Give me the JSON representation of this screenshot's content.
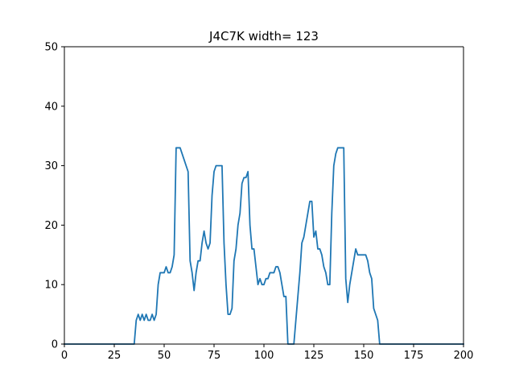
{
  "chart_data": {
    "type": "line",
    "title": "J4C7K width= 123",
    "xlabel": "",
    "ylabel": "",
    "xlim": [
      0,
      200
    ],
    "ylim": [
      0,
      50
    ],
    "xticks": [
      0,
      25,
      50,
      75,
      100,
      125,
      150,
      175,
      200
    ],
    "yticks": [
      0,
      10,
      20,
      30,
      40,
      50
    ],
    "grid": false,
    "series": [
      {
        "color": "#1f77b4",
        "x": [
          0,
          35,
          36,
          37,
          38,
          39,
          40,
          41,
          42,
          43,
          44,
          45,
          46,
          47,
          48,
          49,
          50,
          51,
          52,
          53,
          54,
          55,
          56,
          57,
          58,
          59,
          60,
          61,
          62,
          63,
          64,
          65,
          66,
          67,
          68,
          69,
          70,
          71,
          72,
          73,
          74,
          75,
          76,
          77,
          78,
          79,
          80,
          81,
          82,
          83,
          84,
          85,
          86,
          87,
          88,
          89,
          90,
          91,
          92,
          93,
          94,
          95,
          96,
          97,
          98,
          99,
          100,
          101,
          102,
          103,
          104,
          105,
          106,
          107,
          108,
          109,
          110,
          111,
          112,
          113,
          114,
          115,
          116,
          117,
          118,
          119,
          120,
          121,
          122,
          123,
          124,
          125,
          126,
          127,
          128,
          129,
          130,
          131,
          132,
          133,
          134,
          135,
          136,
          137,
          138,
          139,
          140,
          141,
          142,
          143,
          144,
          145,
          146,
          147,
          148,
          149,
          150,
          151,
          152,
          153,
          154,
          155,
          156,
          157,
          158,
          159,
          200
        ],
        "values": [
          0,
          0,
          4,
          5,
          4,
          5,
          4,
          5,
          4,
          4,
          5,
          4,
          5,
          10,
          12,
          12,
          12,
          13,
          12,
          12,
          13,
          15,
          33,
          33,
          33,
          32,
          31,
          30,
          29,
          14,
          12,
          9,
          12,
          14,
          14,
          17,
          19,
          17,
          16,
          17,
          25,
          29,
          30,
          30,
          30,
          30,
          17,
          10,
          5,
          5,
          6,
          14,
          16,
          20,
          22,
          27,
          28,
          28,
          29,
          20,
          16,
          16,
          13,
          10,
          11,
          10,
          10,
          11,
          11,
          12,
          12,
          12,
          13,
          13,
          12,
          10,
          8,
          8,
          0,
          0,
          0,
          0,
          4,
          8,
          12,
          17,
          18,
          20,
          22,
          24,
          24,
          18,
          19,
          16,
          16,
          15,
          13,
          12,
          10,
          10,
          22,
          30,
          32,
          33,
          33,
          33,
          33,
          11,
          7,
          10,
          12,
          14,
          16,
          15,
          15,
          15,
          15,
          15,
          14,
          12,
          11,
          6,
          5,
          4,
          0,
          0,
          0
        ]
      }
    ]
  }
}
